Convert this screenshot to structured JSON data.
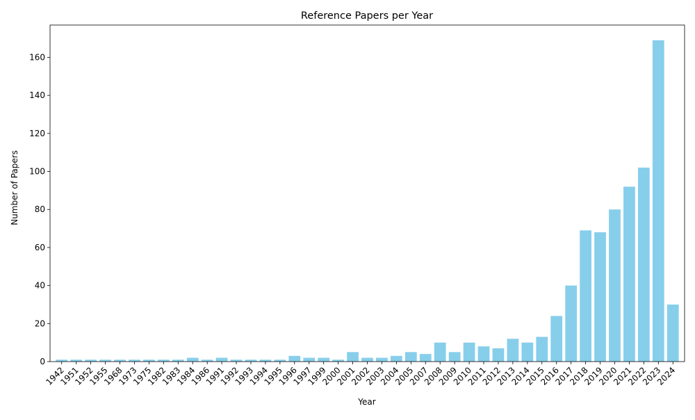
{
  "chart_data": {
    "type": "bar",
    "title": "Reference Papers per Year",
    "xlabel": "Year",
    "ylabel": "Number of Papers",
    "ylim": [
      0,
      177
    ],
    "yticks": [
      0,
      20,
      40,
      60,
      80,
      100,
      120,
      140,
      160
    ],
    "grid": false,
    "bar_color": "#87ceeb",
    "categories": [
      "1942",
      "1951",
      "1952",
      "1955",
      "1968",
      "1973",
      "1975",
      "1982",
      "1983",
      "1984",
      "1986",
      "1991",
      "1992",
      "1993",
      "1994",
      "1995",
      "1996",
      "1997",
      "1999",
      "2000",
      "2001",
      "2002",
      "2003",
      "2004",
      "2005",
      "2007",
      "2008",
      "2009",
      "2010",
      "2011",
      "2012",
      "2013",
      "2014",
      "2015",
      "2016",
      "2017",
      "2018",
      "2019",
      "2020",
      "2021",
      "2022",
      "2023",
      "2024"
    ],
    "values": [
      1,
      1,
      1,
      1,
      1,
      1,
      1,
      1,
      1,
      2,
      1,
      2,
      1,
      1,
      1,
      1,
      3,
      2,
      2,
      1,
      5,
      2,
      2,
      3,
      5,
      4,
      10,
      5,
      10,
      8,
      7,
      12,
      10,
      13,
      24,
      40,
      69,
      68,
      80,
      92,
      102,
      169,
      30
    ]
  }
}
